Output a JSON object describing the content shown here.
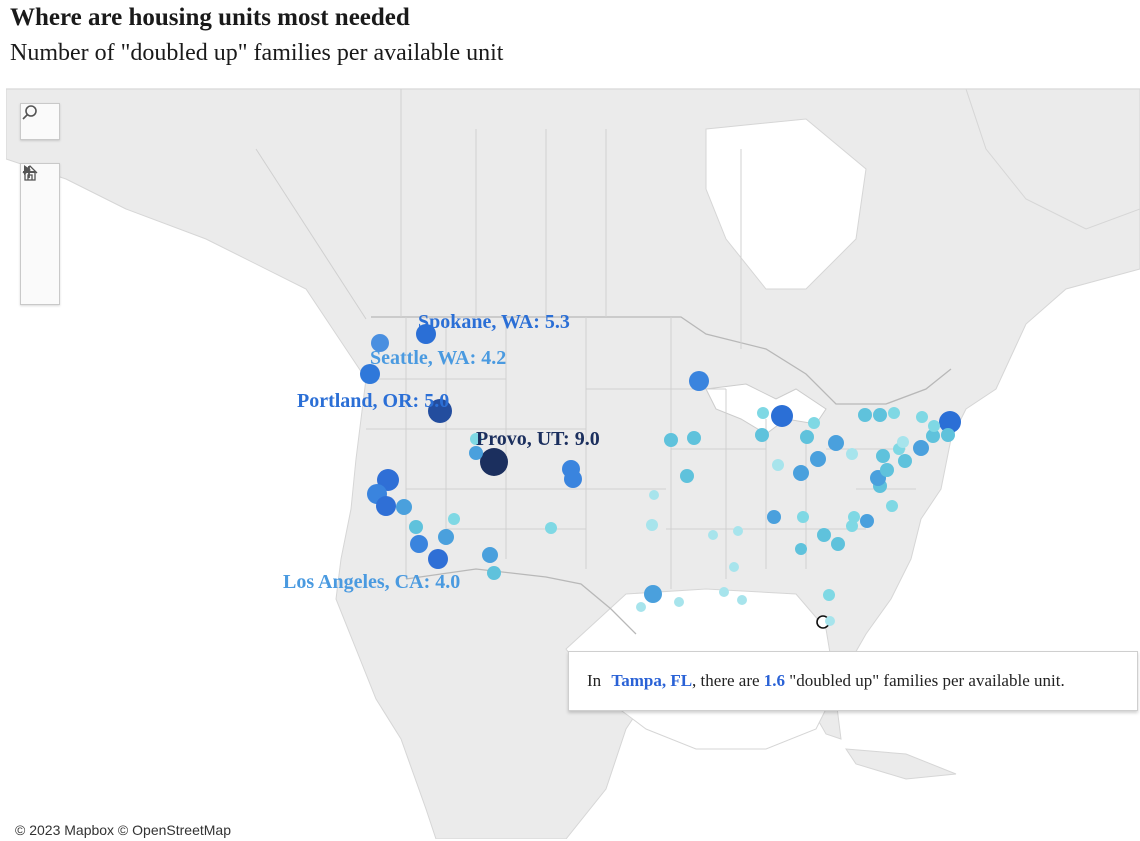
{
  "header": {
    "title": "Where are housing units most needed",
    "subtitle": "Number of \"doubled up\" families per available unit"
  },
  "map_controls": {
    "search_icon": "search-icon",
    "zoom_in_icon": "plus-icon",
    "zoom_out_icon": "minus-icon",
    "home_icon": "home-icon",
    "pan_icon": "play-arrow-icon"
  },
  "labels": {
    "spokane": "Spokane, WA: 5.3",
    "seattle": "Seattle, WA: 4.2",
    "portland": "Portland, OR: 5.0",
    "provo": "Provo, UT: 9.0",
    "los_angeles": "Los Angeles, CA: 4.0"
  },
  "colors": {
    "spokane": "#2b6fd6",
    "seattle": "#4a9ae0",
    "portland": "#2b6fd6",
    "provo": "#1b2f5e",
    "los_angeles": "#4a9ae0",
    "land": "#ebebeb",
    "water": "#ffffff",
    "highlight": "#2a62d6"
  },
  "tooltip": {
    "prefix": "In ",
    "city": "Tampa, FL",
    "middle": ", there are ",
    "value": "1.6",
    "suffix": " \"doubled up\" families per available unit."
  },
  "attribution": "© 2023 Mapbox  © OpenStreetMap"
}
